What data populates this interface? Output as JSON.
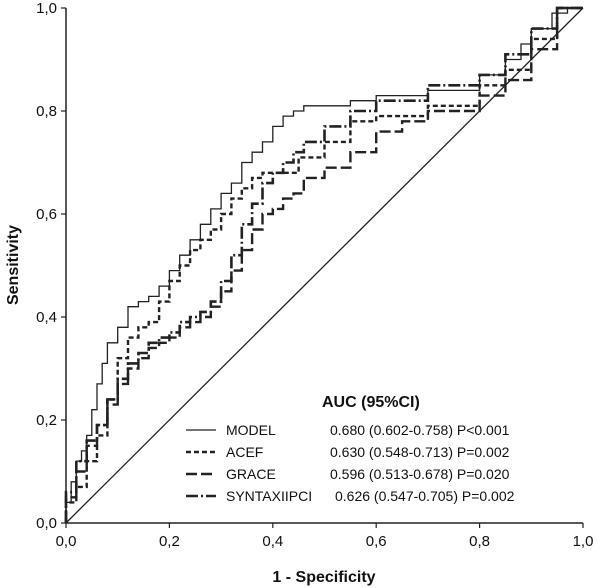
{
  "chart_data": {
    "type": "line",
    "title": "",
    "xlabel": "1 - Specificity",
    "ylabel": "Sensitivity",
    "xlim": [
      0,
      1
    ],
    "ylim": [
      0,
      1
    ],
    "xticks": [
      "0,0",
      "0,2",
      "0,4",
      "0,6",
      "0,8",
      "1,0"
    ],
    "yticks": [
      "0,0",
      "0,2",
      "0,4",
      "0,6",
      "0,8",
      "1,0"
    ],
    "grid": false,
    "legend": {
      "title": "AUC (95%CI)",
      "placement": "bottom-right"
    },
    "reference_line": {
      "x": [
        0,
        1
      ],
      "y": [
        0,
        1
      ],
      "color": "#222222"
    },
    "series": [
      {
        "name": "MODEL",
        "stat": "0.680 (0.602-0.758) P<0.001",
        "style": "solid",
        "color": "#222222",
        "points": [
          [
            0,
            0
          ],
          [
            0.01,
            0.04
          ],
          [
            0.02,
            0.08
          ],
          [
            0.03,
            0.12
          ],
          [
            0.04,
            0.14
          ],
          [
            0.05,
            0.17
          ],
          [
            0.06,
            0.22
          ],
          [
            0.07,
            0.27
          ],
          [
            0.08,
            0.31
          ],
          [
            0.1,
            0.35
          ],
          [
            0.12,
            0.38
          ],
          [
            0.14,
            0.42
          ],
          [
            0.16,
            0.43
          ],
          [
            0.18,
            0.44
          ],
          [
            0.2,
            0.46
          ],
          [
            0.22,
            0.49
          ],
          [
            0.24,
            0.52
          ],
          [
            0.26,
            0.55
          ],
          [
            0.28,
            0.58
          ],
          [
            0.3,
            0.61
          ],
          [
            0.32,
            0.64
          ],
          [
            0.34,
            0.66
          ],
          [
            0.36,
            0.7
          ],
          [
            0.38,
            0.72
          ],
          [
            0.4,
            0.74
          ],
          [
            0.42,
            0.77
          ],
          [
            0.44,
            0.79
          ],
          [
            0.46,
            0.8
          ],
          [
            0.5,
            0.81
          ],
          [
            0.55,
            0.81
          ],
          [
            0.6,
            0.82
          ],
          [
            0.7,
            0.83
          ],
          [
            0.8,
            0.84
          ],
          [
            0.85,
            0.87
          ],
          [
            0.88,
            0.9
          ],
          [
            0.9,
            0.93
          ],
          [
            0.94,
            0.96
          ],
          [
            0.97,
            0.99
          ],
          [
            1,
            1
          ]
        ]
      },
      {
        "name": "ACEF",
        "stat": "0.630 (0.548-0.713) P=0.002",
        "style": "dotted",
        "color": "#222222",
        "points": [
          [
            0,
            0
          ],
          [
            0.02,
            0.04
          ],
          [
            0.04,
            0.07
          ],
          [
            0.06,
            0.12
          ],
          [
            0.08,
            0.17
          ],
          [
            0.1,
            0.24
          ],
          [
            0.12,
            0.32
          ],
          [
            0.14,
            0.36
          ],
          [
            0.16,
            0.38
          ],
          [
            0.18,
            0.39
          ],
          [
            0.2,
            0.43
          ],
          [
            0.22,
            0.47
          ],
          [
            0.24,
            0.5
          ],
          [
            0.26,
            0.53
          ],
          [
            0.28,
            0.55
          ],
          [
            0.3,
            0.57
          ],
          [
            0.32,
            0.6
          ],
          [
            0.34,
            0.63
          ],
          [
            0.36,
            0.65
          ],
          [
            0.38,
            0.67
          ],
          [
            0.4,
            0.68
          ],
          [
            0.45,
            0.68
          ],
          [
            0.5,
            0.71
          ],
          [
            0.55,
            0.74
          ],
          [
            0.6,
            0.78
          ],
          [
            0.7,
            0.79
          ],
          [
            0.8,
            0.81
          ],
          [
            0.85,
            0.85
          ],
          [
            0.9,
            0.88
          ],
          [
            0.95,
            0.94
          ],
          [
            1,
            1
          ]
        ]
      },
      {
        "name": "GRACE",
        "stat": "0.596 (0.513-0.678) P=0.020",
        "style": "dashed",
        "color": "#222222",
        "points": [
          [
            0,
            0
          ],
          [
            0.02,
            0.05
          ],
          [
            0.04,
            0.1
          ],
          [
            0.06,
            0.15
          ],
          [
            0.08,
            0.19
          ],
          [
            0.1,
            0.23
          ],
          [
            0.12,
            0.27
          ],
          [
            0.14,
            0.3
          ],
          [
            0.16,
            0.32
          ],
          [
            0.18,
            0.34
          ],
          [
            0.2,
            0.35
          ],
          [
            0.22,
            0.36
          ],
          [
            0.24,
            0.38
          ],
          [
            0.26,
            0.39
          ],
          [
            0.28,
            0.4
          ],
          [
            0.3,
            0.42
          ],
          [
            0.32,
            0.45
          ],
          [
            0.34,
            0.49
          ],
          [
            0.36,
            0.53
          ],
          [
            0.38,
            0.57
          ],
          [
            0.4,
            0.6
          ],
          [
            0.42,
            0.61
          ],
          [
            0.44,
            0.63
          ],
          [
            0.46,
            0.64
          ],
          [
            0.5,
            0.67
          ],
          [
            0.55,
            0.69
          ],
          [
            0.6,
            0.72
          ],
          [
            0.65,
            0.76
          ],
          [
            0.7,
            0.78
          ],
          [
            0.8,
            0.8
          ],
          [
            0.85,
            0.83
          ],
          [
            0.9,
            0.86
          ],
          [
            0.95,
            0.92
          ],
          [
            1,
            1
          ]
        ]
      },
      {
        "name": "SYNTAXIIPCI",
        "stat": "0.626 (0.547-0.705) P=0.002",
        "style": "dash-dot",
        "color": "#222222",
        "points": [
          [
            0,
            0
          ],
          [
            0.02,
            0.06
          ],
          [
            0.04,
            0.12
          ],
          [
            0.06,
            0.16
          ],
          [
            0.08,
            0.19
          ],
          [
            0.1,
            0.24
          ],
          [
            0.12,
            0.28
          ],
          [
            0.14,
            0.31
          ],
          [
            0.16,
            0.33
          ],
          [
            0.18,
            0.35
          ],
          [
            0.2,
            0.36
          ],
          [
            0.22,
            0.37
          ],
          [
            0.24,
            0.39
          ],
          [
            0.26,
            0.4
          ],
          [
            0.28,
            0.41
          ],
          [
            0.3,
            0.43
          ],
          [
            0.32,
            0.47
          ],
          [
            0.34,
            0.52
          ],
          [
            0.36,
            0.58
          ],
          [
            0.38,
            0.62
          ],
          [
            0.4,
            0.66
          ],
          [
            0.42,
            0.68
          ],
          [
            0.44,
            0.7
          ],
          [
            0.46,
            0.72
          ],
          [
            0.5,
            0.74
          ],
          [
            0.55,
            0.77
          ],
          [
            0.6,
            0.8
          ],
          [
            0.65,
            0.82
          ],
          [
            0.7,
            0.82
          ],
          [
            0.8,
            0.85
          ],
          [
            0.85,
            0.87
          ],
          [
            0.9,
            0.91
          ],
          [
            0.95,
            0.96
          ],
          [
            1,
            1
          ]
        ]
      }
    ]
  }
}
